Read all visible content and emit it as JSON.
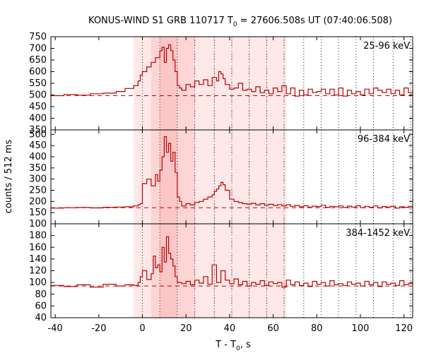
{
  "chart_data": {
    "type": "line",
    "title_parts": [
      "KONUS-WIND S1 GRB 110717 T",
      "0",
      " = 27606.508s UT (07:40:06.508)"
    ],
    "xlabel_parts": [
      "T - T",
      "0",
      ", s"
    ],
    "ylabel": "counts / 512 ms",
    "xlim": [
      -42,
      124
    ],
    "x_ticks": [
      -40,
      -20,
      0,
      20,
      40,
      60,
      80,
      100,
      120
    ],
    "shaded_regions": [
      {
        "x0": -4,
        "x1": 66,
        "color": "#ffe8e8"
      },
      {
        "x0": 4,
        "x1": 24,
        "color": "#fdd5d5"
      },
      {
        "x0": 8,
        "x1": 16,
        "color": "#fcc6c6"
      }
    ],
    "vlines_dotted_black": [
      0,
      8,
      16,
      24,
      33,
      41,
      49,
      57,
      65,
      74,
      82,
      90,
      98,
      106,
      115,
      123
    ],
    "vlines_dashed_gray": [
      24,
      33,
      41,
      49,
      57,
      65
    ],
    "colors": {
      "series": "#b50000",
      "background_dash": "#c00000"
    },
    "panels": [
      {
        "label": "25-96 keV",
        "ylim": [
          350,
          750
        ],
        "y_ticks": [
          350,
          400,
          450,
          500,
          550,
          600,
          650,
          700,
          750
        ],
        "background_level": 497,
        "series": {
          "x": [
            -42,
            -36,
            -30,
            -24,
            -18,
            -12,
            -8,
            -4,
            -2,
            -1,
            0,
            2,
            4,
            6,
            8,
            9,
            10,
            11,
            12,
            13,
            14,
            15,
            16,
            17,
            18,
            20,
            22,
            24,
            26,
            28,
            30,
            32,
            34,
            35,
            36,
            37,
            38,
            40,
            42,
            44,
            46,
            48,
            50,
            52,
            54,
            56,
            58,
            60,
            62,
            64,
            66,
            68,
            70,
            72,
            74,
            76,
            78,
            80,
            82,
            84,
            86,
            88,
            90,
            92,
            94,
            96,
            98,
            100,
            102,
            104,
            106,
            108,
            110,
            112,
            114,
            116,
            118,
            120,
            122,
            124
          ],
          "y": [
            497,
            502,
            499,
            505,
            508,
            515,
            528,
            540,
            560,
            585,
            600,
            620,
            640,
            660,
            690,
            705,
            640,
            700,
            715,
            690,
            650,
            600,
            540,
            530,
            520,
            545,
            535,
            560,
            545,
            565,
            540,
            575,
            560,
            600,
            590,
            570,
            545,
            525,
            530,
            550,
            520,
            525,
            515,
            535,
            510,
            520,
            505,
            530,
            515,
            540,
            505,
            530,
            495,
            520,
            500,
            525,
            510,
            515,
            525,
            505,
            525,
            500,
            530,
            495,
            520,
            505,
            515,
            500,
            525,
            505,
            530,
            520,
            510,
            525,
            505,
            520,
            500,
            530,
            510,
            520
          ]
        }
      },
      {
        "label": "96-384 keV",
        "ylim": [
          100,
          520
        ],
        "y_ticks": [
          100,
          150,
          200,
          250,
          300,
          350,
          400,
          450,
          500
        ],
        "background_level": 172,
        "series": {
          "x": [
            -42,
            -36,
            -30,
            -24,
            -18,
            -12,
            -8,
            -4,
            -2,
            -1,
            0,
            2,
            4,
            6,
            7,
            8,
            9,
            10,
            11,
            12,
            13,
            14,
            15,
            16,
            17,
            18,
            20,
            22,
            24,
            26,
            28,
            30,
            32,
            33,
            34,
            35,
            36,
            37,
            38,
            40,
            42,
            44,
            46,
            48,
            50,
            52,
            54,
            56,
            58,
            60,
            62,
            64,
            66,
            68,
            70,
            72,
            74,
            76,
            78,
            80,
            82,
            84,
            86,
            88,
            90,
            92,
            94,
            96,
            98,
            100,
            102,
            104,
            106,
            108,
            110,
            112,
            114,
            116,
            118,
            120,
            122,
            124
          ],
          "y": [
            170,
            172,
            173,
            171,
            174,
            175,
            176,
            180,
            186,
            190,
            280,
            300,
            270,
            320,
            290,
            340,
            400,
            490,
            420,
            460,
            380,
            420,
            330,
            220,
            200,
            180,
            190,
            185,
            195,
            200,
            210,
            220,
            230,
            245,
            255,
            270,
            285,
            275,
            250,
            210,
            200,
            195,
            190,
            188,
            192,
            185,
            190,
            183,
            187,
            182,
            186,
            180,
            185,
            178,
            182,
            176,
            181,
            175,
            179,
            177,
            183,
            174,
            178,
            176,
            180,
            173,
            179,
            175,
            181,
            172,
            178,
            174,
            180,
            171,
            177,
            175,
            179,
            170,
            176,
            174,
            178,
            175
          ]
        }
      },
      {
        "label": "384-1452 keV",
        "ylim": [
          40,
          200
        ],
        "y_ticks": [
          40,
          60,
          80,
          100,
          120,
          140,
          160,
          180
        ],
        "background_level": 94,
        "series": {
          "x": [
            -42,
            -36,
            -30,
            -24,
            -18,
            -12,
            -8,
            -4,
            -2,
            -1,
            0,
            2,
            4,
            5,
            6,
            7,
            8,
            9,
            10,
            11,
            12,
            13,
            14,
            15,
            16,
            18,
            20,
            22,
            24,
            26,
            28,
            30,
            32,
            34,
            36,
            38,
            40,
            42,
            44,
            46,
            48,
            50,
            52,
            54,
            56,
            58,
            60,
            62,
            64,
            66,
            68,
            70,
            72,
            74,
            76,
            78,
            80,
            82,
            84,
            86,
            88,
            90,
            92,
            94,
            96,
            98,
            100,
            102,
            104,
            106,
            108,
            110,
            112,
            114,
            116,
            118,
            120,
            122,
            124
          ],
          "y": [
            95,
            93,
            96,
            92,
            97,
            94,
            96,
            95,
            100,
            110,
            120,
            105,
            115,
            145,
            125,
            130,
            118,
            160,
            135,
            178,
            150,
            140,
            128,
            110,
            100,
            98,
            102,
            96,
            104,
            99,
            110,
            97,
            130,
            100,
            120,
            104,
            98,
            106,
            96,
            102,
            94,
            100,
            97,
            103,
            95,
            101,
            98,
            100,
            92,
            104,
            96,
            101,
            95,
            99,
            93,
            102,
            97,
            100,
            94,
            103,
            96,
            98,
            95,
            101,
            97,
            99,
            94,
            102,
            96,
            100,
            93,
            101,
            97,
            99,
            95,
            103,
            96,
            98,
            97
          ]
        }
      }
    ]
  }
}
